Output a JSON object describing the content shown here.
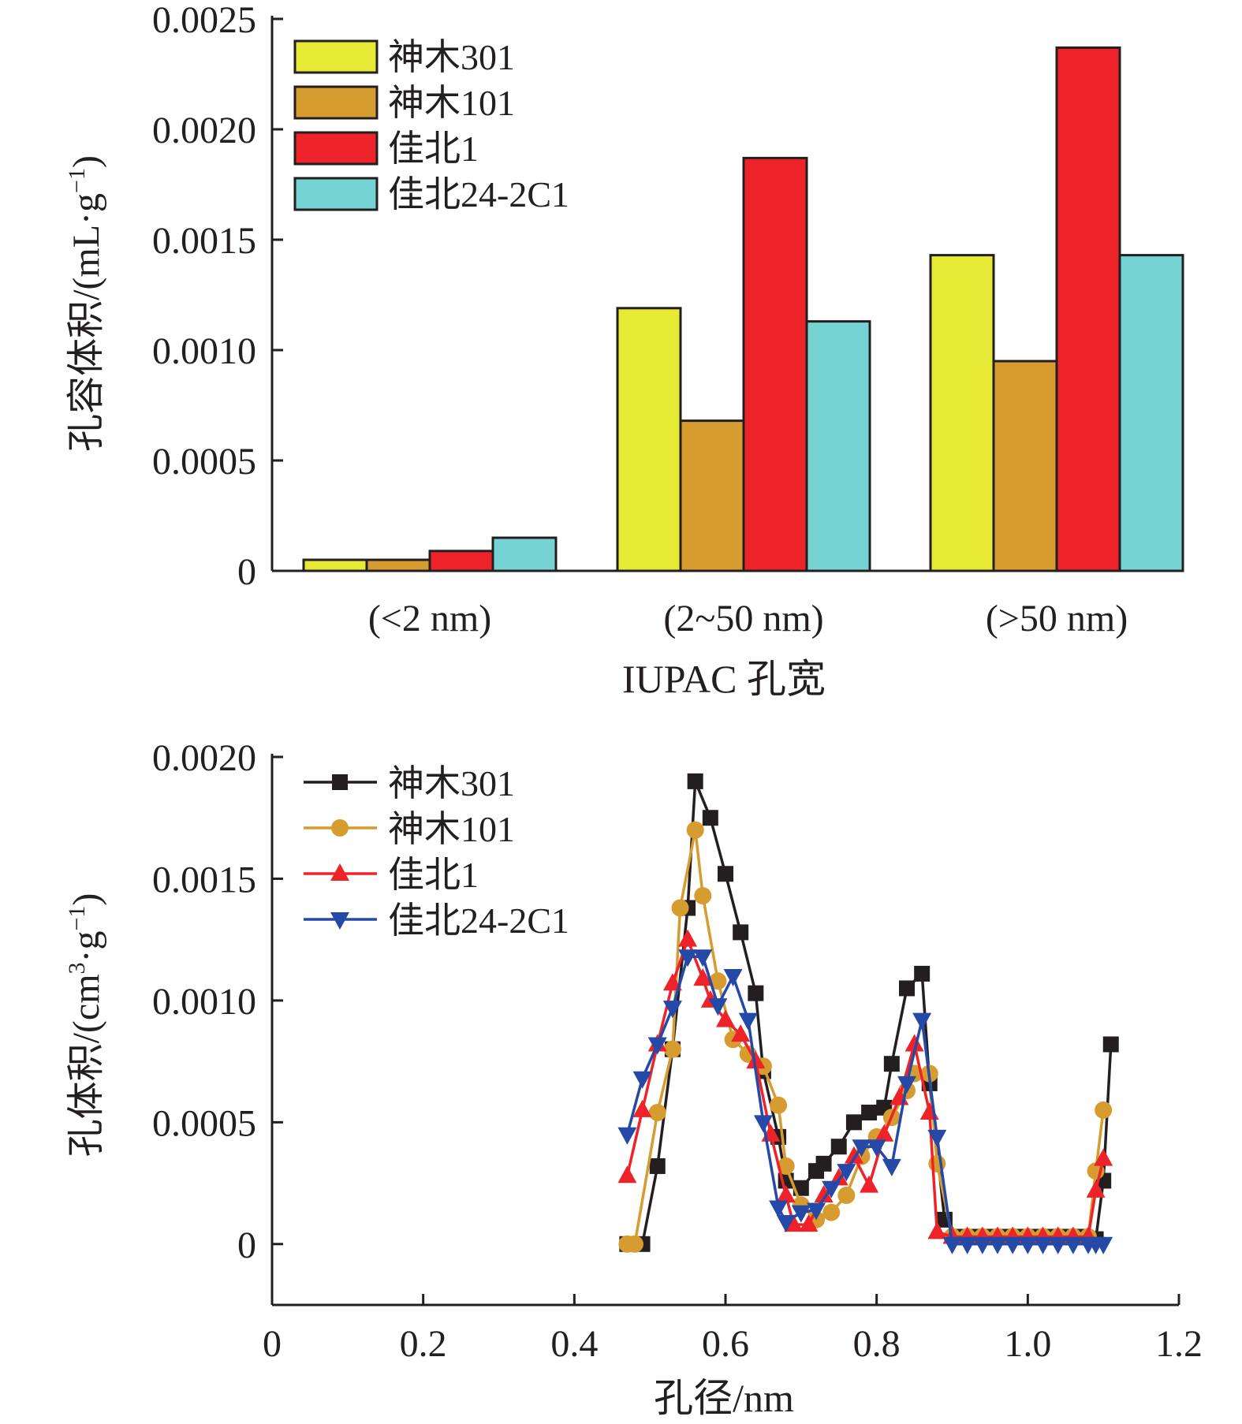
{
  "chart_data": [
    {
      "type": "bar",
      "xlabel": "IUPAC 孔宽",
      "ylabel": "孔容体积/(mL·g",
      "ylabel_sup": "−1",
      "ylabel_tail": ")",
      "categories": [
        "(<2 nm)",
        "(2~50 nm)",
        "(>50 nm)"
      ],
      "ylim": [
        0,
        0.0025
      ],
      "yticks": [
        0,
        0.0005,
        0.001,
        0.0015,
        0.002,
        0.0025
      ],
      "ytick_labels": [
        "0",
        "0.0005",
        "0.0010",
        "0.0015",
        "0.0020",
        "0.0025"
      ],
      "legend_position": "top-left",
      "series": [
        {
          "name": "神木301",
          "color": "#e6ea35",
          "values": [
            5e-05,
            0.00119,
            0.00143
          ]
        },
        {
          "name": "神木101",
          "color": "#d69c30",
          "values": [
            5e-05,
            0.00068,
            0.00095
          ]
        },
        {
          "name": "佳北1",
          "color": "#ee232a",
          "values": [
            9e-05,
            0.00187,
            0.00237
          ]
        },
        {
          "name": "佳北24-2C1",
          "color": "#75d3d3",
          "values": [
            0.00015,
            0.00113,
            0.00143
          ]
        }
      ]
    },
    {
      "type": "line",
      "xlabel": "孔径/nm",
      "ylabel": "孔体积/(cm",
      "ylabel_sup1": "3",
      "ylabel_mid": "·g",
      "ylabel_sup2": "−1",
      "ylabel_tail": ")",
      "xlim": [
        0,
        1.2
      ],
      "ylim": [
        -0.00025,
        0.002
      ],
      "xticks": [
        0,
        0.2,
        0.4,
        0.6,
        0.8,
        1.0,
        1.2
      ],
      "xtick_labels": [
        "0",
        "0.2",
        "0.4",
        "0.6",
        "0.8",
        "1.0",
        "1.2"
      ],
      "yticks": [
        0,
        0.0005,
        0.001,
        0.0015,
        0.002
      ],
      "ytick_labels": [
        "0",
        "0.0005",
        "0.0010",
        "0.0015",
        "0.0020"
      ],
      "legend_position": "top-left",
      "series": [
        {
          "name": "神木301",
          "color": "#231f20",
          "marker": "square",
          "x": [
            0.47,
            0.49,
            0.51,
            0.53,
            0.55,
            0.56,
            0.58,
            0.6,
            0.62,
            0.64,
            0.65,
            0.67,
            0.68,
            0.7,
            0.72,
            0.73,
            0.75,
            0.77,
            0.79,
            0.81,
            0.82,
            0.84,
            0.86,
            0.87,
            0.89,
            0.91,
            0.93,
            0.95,
            0.97,
            0.99,
            1.01,
            1.03,
            1.05,
            1.07,
            1.09,
            1.1,
            1.11
          ],
          "y": [
            0,
            0,
            0.00032,
            0.0008,
            0.00138,
            0.0019,
            0.00175,
            0.00152,
            0.00128,
            0.00103,
            0.00071,
            0.00044,
            0.00026,
            0.00023,
            0.0003,
            0.00033,
            0.0004,
            0.0005,
            0.00054,
            0.00056,
            0.00074,
            0.00105,
            0.00111,
            0.00066,
            0.0001,
            3e-05,
            3e-05,
            3e-05,
            3e-05,
            3e-05,
            3e-05,
            3e-05,
            3e-05,
            3e-05,
            2e-05,
            0.00026,
            0.00082
          ]
        },
        {
          "name": "神木101",
          "color": "#d69c30",
          "marker": "circle",
          "x": [
            0.47,
            0.48,
            0.51,
            0.53,
            0.54,
            0.56,
            0.57,
            0.59,
            0.61,
            0.63,
            0.65,
            0.67,
            0.68,
            0.7,
            0.72,
            0.74,
            0.76,
            0.78,
            0.8,
            0.82,
            0.84,
            0.85,
            0.87,
            0.88,
            0.9,
            0.92,
            0.94,
            0.96,
            0.98,
            1.0,
            1.02,
            1.04,
            1.06,
            1.08,
            1.09,
            1.1
          ],
          "y": [
            0,
            0,
            0.00054,
            0.0008,
            0.00138,
            0.0017,
            0.00143,
            0.00108,
            0.00084,
            0.00078,
            0.00073,
            0.00057,
            0.00032,
            0.00016,
            0.0001,
            0.00013,
            0.0002,
            0.00036,
            0.00044,
            0.00052,
            0.00063,
            0.0007,
            0.0007,
            0.00033,
            3e-05,
            3e-05,
            3e-05,
            3e-05,
            3e-05,
            3e-05,
            3e-05,
            3e-05,
            3e-05,
            3e-05,
            0.0003,
            0.00055
          ]
        },
        {
          "name": "佳北1",
          "color": "#ee232a",
          "marker": "triangle-up",
          "x": [
            0.47,
            0.49,
            0.51,
            0.53,
            0.55,
            0.57,
            0.58,
            0.6,
            0.62,
            0.64,
            0.66,
            0.68,
            0.69,
            0.71,
            0.73,
            0.75,
            0.77,
            0.79,
            0.81,
            0.83,
            0.85,
            0.87,
            0.88,
            0.9,
            0.92,
            0.94,
            0.96,
            0.98,
            1.0,
            1.02,
            1.04,
            1.06,
            1.08,
            1.09,
            1.1
          ],
          "y": [
            0.00028,
            0.00055,
            0.00082,
            0.00107,
            0.00125,
            0.00109,
            0.001,
            0.00092,
            0.00086,
            0.00075,
            0.00045,
            0.0002,
            8e-05,
            8e-05,
            0.0002,
            0.00027,
            0.00036,
            0.00024,
            0.00045,
            0.0006,
            0.00082,
            0.00054,
            5e-05,
            3e-05,
            3e-05,
            3e-05,
            3e-05,
            3e-05,
            3e-05,
            3e-05,
            3e-05,
            3e-05,
            3e-05,
            0.00022,
            0.00035
          ]
        },
        {
          "name": "佳北24-2C1",
          "color": "#2449a7",
          "marker": "triangle-down",
          "x": [
            0.47,
            0.49,
            0.51,
            0.53,
            0.55,
            0.57,
            0.59,
            0.61,
            0.63,
            0.65,
            0.67,
            0.68,
            0.7,
            0.72,
            0.74,
            0.76,
            0.78,
            0.8,
            0.82,
            0.84,
            0.86,
            0.88,
            0.9,
            0.92,
            0.94,
            0.96,
            0.98,
            1.0,
            1.02,
            1.04,
            1.06,
            1.08,
            1.09,
            1.1
          ],
          "y": [
            0.00045,
            0.00068,
            0.00082,
            0.00097,
            0.00118,
            0.00118,
            0.00098,
            0.0011,
            0.00092,
            0.0005,
            0.00015,
            9e-05,
            0.00013,
            0.00014,
            0.00023,
            0.0003,
            0.0004,
            0.0004,
            0.00032,
            0.00066,
            0.00092,
            0.00044,
            0,
            0,
            0,
            0,
            0,
            0,
            0,
            0,
            0,
            0,
            0,
            0
          ]
        }
      ]
    }
  ]
}
